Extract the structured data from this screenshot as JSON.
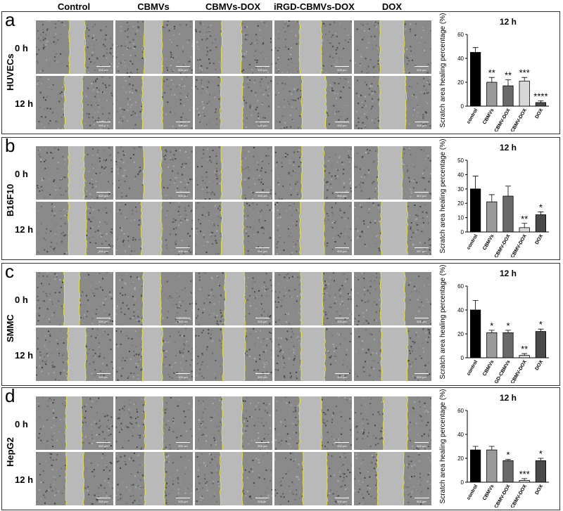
{
  "columns": [
    "Control",
    "CBMVs",
    "CBMVs-DOX",
    "iRGD-CBMVs-DOX",
    "DOX"
  ],
  "time_labels": [
    "0 h",
    "12 h"
  ],
  "scale_bar_text": "500 μm",
  "panels": [
    {
      "letter": "a",
      "cell_line": "HUVECs",
      "chart_data": {
        "type": "bar",
        "title": "12 h",
        "ylabel": "Scratch area healing percentage (%)",
        "categories": [
          "control",
          "CBMVs",
          "CBMV-DOX",
          "iRGD-CBMV-DOX",
          "DOX"
        ],
        "values": [
          45,
          20,
          17,
          21,
          3
        ],
        "errors": [
          4,
          4,
          5,
          3,
          1.5
        ],
        "significance": [
          "",
          "**",
          "**",
          "***",
          "****"
        ],
        "ylim": [
          0,
          60
        ],
        "yticks": [
          "0",
          "20",
          "40",
          "60"
        ],
        "colors": [
          "#000000",
          "#9a9a9a",
          "#6a6a6a",
          "#d8d8d8",
          "#4a4a4a"
        ]
      }
    },
    {
      "letter": "b",
      "cell_line": "B16F10",
      "chart_data": {
        "type": "bar",
        "title": "12 h",
        "ylabel": "Scratch area healing percentage (%)",
        "categories": [
          "control",
          "CBMVs",
          "CBMV-DOX",
          "iRGD-CBMV-DOX",
          "DOX"
        ],
        "values": [
          30,
          21,
          25,
          3,
          12
        ],
        "errors": [
          9,
          5,
          7,
          3,
          2
        ],
        "significance": [
          "",
          "",
          "",
          "**",
          "*"
        ],
        "ylim": [
          0,
          50
        ],
        "yticks": [
          "0",
          "10",
          "20",
          "30",
          "40",
          "50"
        ],
        "colors": [
          "#000000",
          "#9a9a9a",
          "#6a6a6a",
          "#d8d8d8",
          "#4a4a4a"
        ]
      }
    },
    {
      "letter": "c",
      "cell_line": "SMMC",
      "chart_data": {
        "type": "bar",
        "title": "12 h",
        "ylabel": "Scratch area healing percentage (%)",
        "categories": [
          "control",
          "CBMVs",
          "iRGD-CBMVs",
          "iRGD-CBMV-DOX",
          "DOX"
        ],
        "values": [
          40,
          21,
          21,
          2,
          22
        ],
        "errors": [
          8,
          2,
          2,
          1.5,
          2
        ],
        "significance": [
          "",
          "*",
          "*",
          "**",
          "*"
        ],
        "ylim": [
          0,
          60
        ],
        "yticks": [
          "0",
          "20",
          "40",
          "60"
        ],
        "colors": [
          "#000000",
          "#9a9a9a",
          "#6a6a6a",
          "#d8d8d8",
          "#4a4a4a"
        ]
      }
    },
    {
      "letter": "d",
      "cell_line": "HepG2",
      "chart_data": {
        "type": "bar",
        "title": "12 h",
        "ylabel": "Scratch area healing percentage (%)",
        "categories": [
          "control",
          "CBMVs",
          "CBMV-DOX",
          "iRGD-CBMV-DOX",
          "DOX"
        ],
        "values": [
          27,
          27,
          18,
          1.5,
          18
        ],
        "errors": [
          3,
          3,
          1,
          1.5,
          2
        ],
        "significance": [
          "",
          "",
          "*",
          "***",
          "*"
        ],
        "ylim": [
          0,
          60
        ],
        "yticks": [
          "0",
          "20",
          "40",
          "60"
        ],
        "colors": [
          "#000000",
          "#9a9a9a",
          "#6a6a6a",
          "#d8d8d8",
          "#4a4a4a"
        ]
      }
    }
  ]
}
